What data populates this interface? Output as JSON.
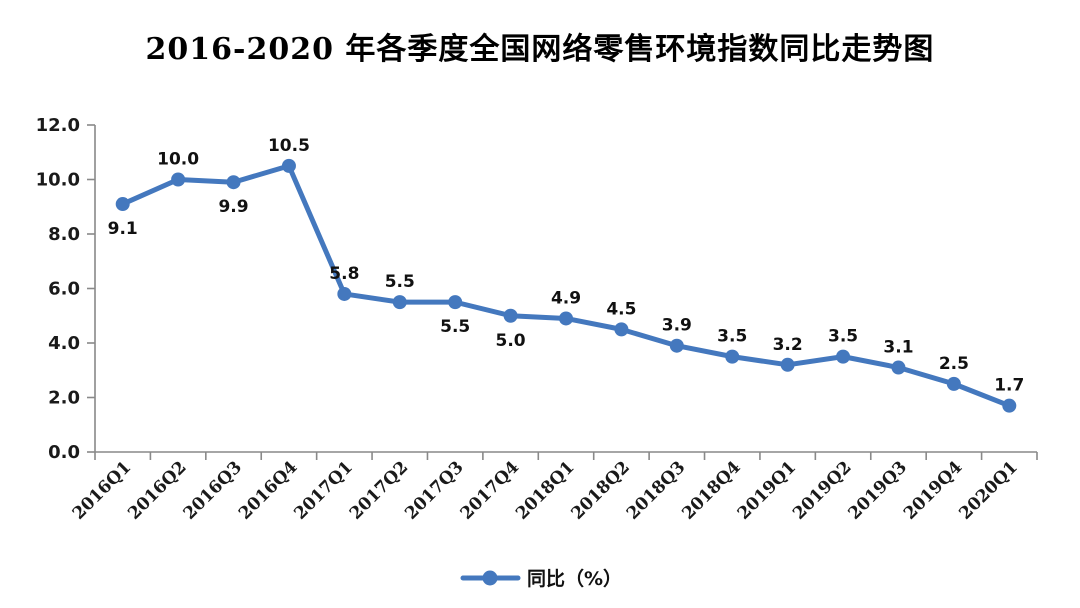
{
  "title": "2016-2020 年各季度全国网络零售环境指数同比走势图",
  "colors": {
    "line": "#4478BE",
    "marker": "#4478BE",
    "axis": "#898989",
    "text": "#1a1a1a"
  },
  "legend": {
    "label": "同比（%）",
    "position": "bottom"
  },
  "chart_data": {
    "type": "line",
    "title": "2016-2020 年各季度全国网络零售环境指数同比走势图",
    "categories": [
      "2016Q1",
      "2016Q2",
      "2016Q3",
      "2016Q4",
      "2017Q1",
      "2017Q2",
      "2017Q3",
      "2017Q4",
      "2018Q1",
      "2018Q2",
      "2018Q3",
      "2018Q4",
      "2019Q1",
      "2019Q2",
      "2019Q3",
      "2019Q4",
      "2020Q1"
    ],
    "series": [
      {
        "name": "同比（%）",
        "values": [
          9.1,
          10.0,
          9.9,
          10.5,
          5.8,
          5.5,
          5.5,
          5.0,
          4.9,
          4.5,
          3.9,
          3.5,
          3.2,
          3.5,
          3.1,
          2.5,
          1.7
        ]
      }
    ],
    "data_label_positions": [
      "below",
      "above",
      "below",
      "above",
      "above",
      "above",
      "below",
      "below",
      "above",
      "above",
      "above",
      "above",
      "above",
      "above",
      "above",
      "above",
      "above"
    ],
    "xlabel": "",
    "ylabel": "",
    "ylim": [
      0,
      12
    ],
    "ytick_step": 2,
    "ytick_labels": [
      "0.0",
      "2.0",
      "4.0",
      "6.0",
      "8.0",
      "10.0",
      "12.0"
    ],
    "grid": false,
    "legend_position": "bottom"
  }
}
